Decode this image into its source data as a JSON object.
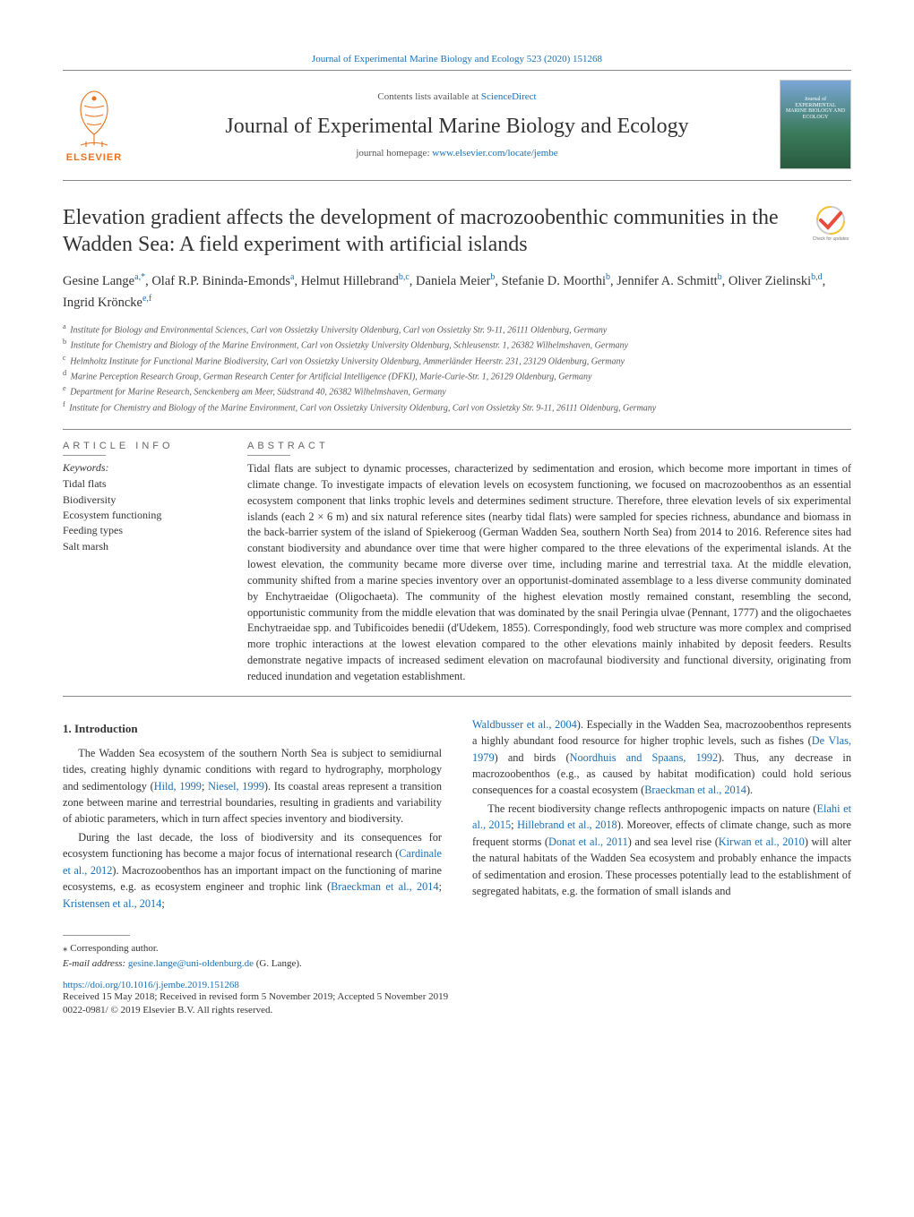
{
  "top_link_prefix": "Journal of Experimental Marine Biology and Ecology 523 (2020) 151268",
  "masthead": {
    "contents_prefix": "Contents lists available at ",
    "contents_link": "ScienceDirect",
    "journal_title": "Journal of Experimental Marine Biology and Ecology",
    "homepage_prefix": "journal homepage: ",
    "homepage_url": "www.elsevier.com/locate/jembe",
    "elsevier_label": "ELSEVIER",
    "cover_text": "Journal of EXPERIMENTAL MARINE BIOLOGY AND ECOLOGY"
  },
  "article": {
    "title": "Elevation gradient affects the development of macrozoobenthic communities in the Wadden Sea: A field experiment with artificial islands",
    "crossmark_label": "Check for updates",
    "authors_html_parts": [
      {
        "name": "Gesine Lange",
        "sup": "a,*"
      },
      {
        "name": "Olaf R.P. Bininda-Emonds",
        "sup": "a"
      },
      {
        "name": "Helmut Hillebrand",
        "sup": "b,c"
      },
      {
        "name": "Daniela Meier",
        "sup": "b"
      },
      {
        "name": "Stefanie D. Moorthi",
        "sup": "b"
      },
      {
        "name": "Jennifer A. Schmitt",
        "sup": "b"
      },
      {
        "name": "Oliver Zielinski",
        "sup": "b,d"
      },
      {
        "name": "Ingrid Kröncke",
        "sup": "e,f"
      }
    ],
    "affiliations": [
      {
        "key": "a",
        "text": "Institute for Biology and Environmental Sciences, Carl von Ossietzky University Oldenburg, Carl von Ossietzky Str. 9-11, 26111 Oldenburg, Germany"
      },
      {
        "key": "b",
        "text": "Institute for Chemistry and Biology of the Marine Environment, Carl von Ossietzky University Oldenburg, Schleusenstr. 1, 26382 Wilhelmshaven, Germany"
      },
      {
        "key": "c",
        "text": "Helmholtz Institute for Functional Marine Biodiversity, Carl von Ossietzky University Oldenburg, Ammerländer Heerstr. 231, 23129 Oldenburg, Germany"
      },
      {
        "key": "d",
        "text": "Marine Perception Research Group, German Research Center for Artificial Intelligence (DFKI), Marie-Curie-Str. 1, 26129 Oldenburg, Germany"
      },
      {
        "key": "e",
        "text": "Department for Marine Research, Senckenberg am Meer, Südstrand 40, 26382 Wilhelmshaven, Germany"
      },
      {
        "key": "f",
        "text": "Institute for Chemistry and Biology of the Marine Environment, Carl von Ossietzky University Oldenburg, Carl von Ossietzky Str. 9-11, 26111 Oldenburg, Germany"
      }
    ]
  },
  "info": {
    "article_info_head": "ARTICLE INFO",
    "abstract_head": "ABSTRACT",
    "keywords_label": "Keywords:",
    "keywords": [
      "Tidal flats",
      "Biodiversity",
      "Ecosystem functioning",
      "Feeding types",
      "Salt marsh"
    ],
    "abstract": "Tidal flats are subject to dynamic processes, characterized by sedimentation and erosion, which become more important in times of climate change. To investigate impacts of elevation levels on ecosystem functioning, we focused on macrozoobenthos as an essential ecosystem component that links trophic levels and determines sediment structure. Therefore, three elevation levels of six experimental islands (each 2 × 6 m) and six natural reference sites (nearby tidal flats) were sampled for species richness, abundance and biomass in the back-barrier system of the island of Spiekeroog (German Wadden Sea, southern North Sea) from 2014 to 2016. Reference sites had constant biodiversity and abundance over time that were higher compared to the three elevations of the experimental islands. At the lowest elevation, the community became more diverse over time, including marine and terrestrial taxa. At the middle elevation, community shifted from a marine species inventory over an opportunist-dominated assemblage to a less diverse community dominated by Enchytraeidae (Oligochaeta). The community of the highest elevation mostly remained constant, resembling the second, opportunistic community from the middle elevation that was dominated by the snail Peringia ulvae (Pennant, 1777) and the oligochaetes Enchytraeidae spp. and Tubificoides benedii (d'Udekem, 1855). Correspondingly, food web structure was more complex and comprised more trophic interactions at the lowest elevation compared to the other elevations mainly inhabited by deposit feeders. Results demonstrate negative impacts of increased sediment elevation on macrofaunal biodiversity and functional diversity, originating from reduced inundation and vegetation establishment."
  },
  "body": {
    "section_heading": "1. Introduction",
    "left_paras": [
      "The Wadden Sea ecosystem of the southern North Sea is subject to semidiurnal tides, creating highly dynamic conditions with regard to hydrography, morphology and sedimentology (|Hild, 1999|; |Niesel, 1999|). Its coastal areas represent a transition zone between marine and terrestrial boundaries, resulting in gradients and variability of abiotic parameters, which in turn affect species inventory and biodiversity.",
      "During the last decade, the loss of biodiversity and its consequences for ecosystem functioning has become a major focus of international research (|Cardinale et al., 2012|). Macrozoobenthos has an important impact on the functioning of marine ecosystems, e.g. as ecosystem engineer and trophic link (|Braeckman et al., 2014|; |Kristensen et al., 2014|;"
    ],
    "right_paras": [
      "|Waldbusser et al., 2004|). Especially in the Wadden Sea, macrozoobenthos represents a highly abundant food resource for higher trophic levels, such as fishes (|De Vlas, 1979|) and birds (|Noordhuis and Spaans, 1992|). Thus, any decrease in macrozoobenthos (e.g., as caused by habitat modification) could hold serious consequences for a coastal ecosystem (|Braeckman et al., 2014|).",
      "The recent biodiversity change reflects anthropogenic impacts on nature (|Elahi et al., 2015|; |Hillebrand et al., 2018|). Moreover, effects of climate change, such as more frequent storms (|Donat et al., 2011|) and sea level rise (|Kirwan et al., 2010|) will alter the natural habitats of the Wadden Sea ecosystem and probably enhance the impacts of sedimentation and erosion. These processes potentially lead to the establishment of segregated habitats, e.g. the formation of small islands and"
    ]
  },
  "footer": {
    "corresponding": "⁎ Corresponding author.",
    "email_label": "E-mail address: ",
    "email": "gesine.lange@uni-oldenburg.de",
    "email_suffix": " (G. Lange).",
    "doi": "https://doi.org/10.1016/j.jembe.2019.151268",
    "received": "Received 15 May 2018; Received in revised form 5 November 2019; Accepted 5 November 2019",
    "copyright": "0022-0981/ © 2019 Elsevier B.V. All rights reserved."
  },
  "colors": {
    "link": "#1a6fb5",
    "elsevier_orange": "#e9711c",
    "rule": "#888888"
  }
}
